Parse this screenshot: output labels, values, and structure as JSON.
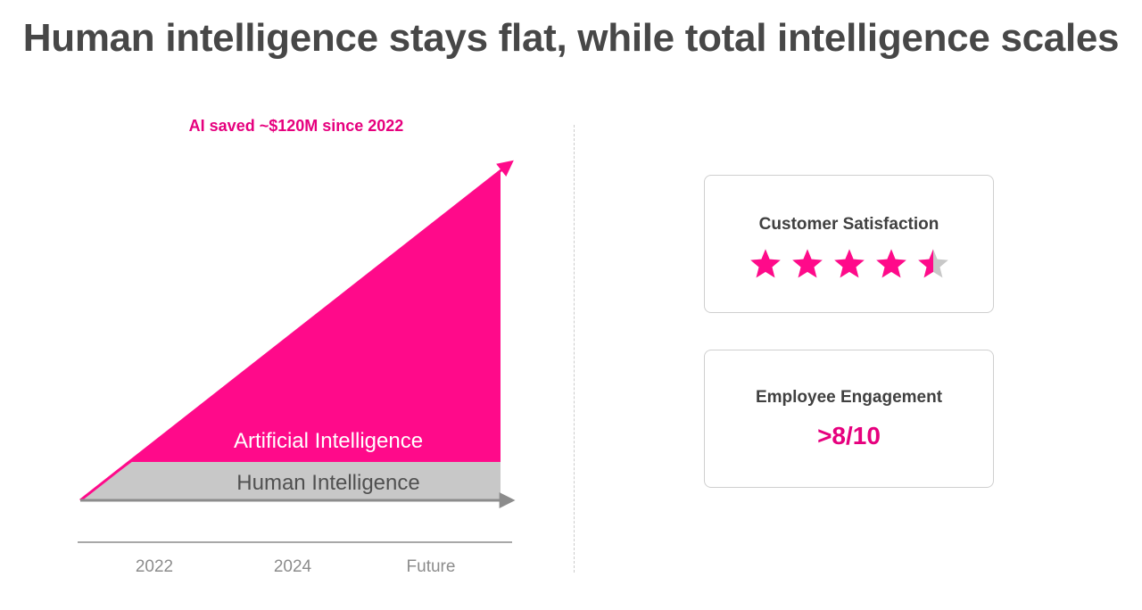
{
  "title": "Human intelligence stays flat, while total intelligence scales",
  "annotation": "AI saved ~$120M since 2022",
  "colors": {
    "accent": "#ff0a8a",
    "accent_text": "#e6007e",
    "human_band": "#c8c8c8",
    "axis": "#8c8c8c",
    "star_empty": "#c8c8c8"
  },
  "chart_data": {
    "type": "area",
    "categories": [
      "2022",
      "2024",
      "Future"
    ],
    "series": [
      {
        "name": "Human Intelligence"
      },
      {
        "name": "Artificial Intelligence"
      }
    ]
  },
  "cards": [
    {
      "title": "Customer Satisfaction",
      "stars": {
        "max": 5,
        "value": 4.5
      },
      "icon": "star-icon"
    },
    {
      "title": "Employee Engagement",
      "value": ">8/10"
    }
  ]
}
